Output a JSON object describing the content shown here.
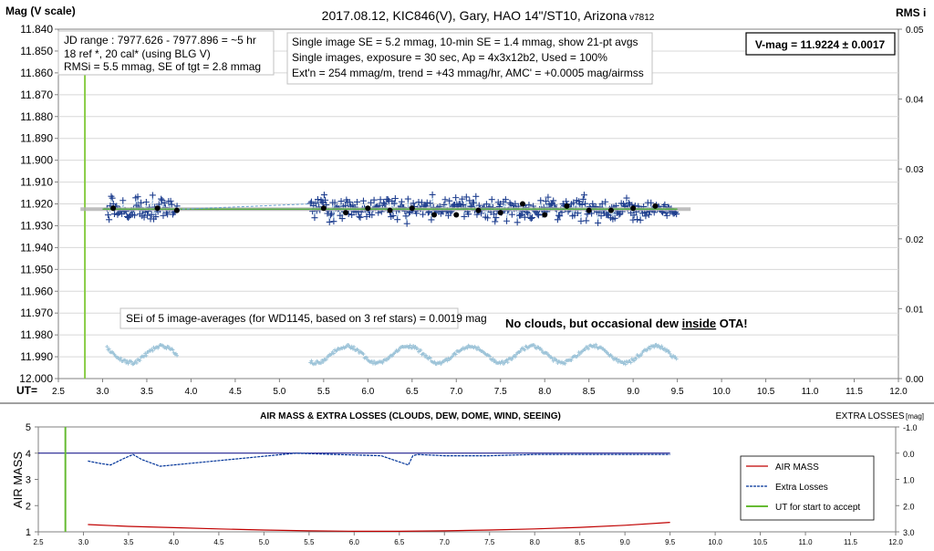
{
  "chart_data": [
    {
      "type": "scatter",
      "title": "2017.08.12,  KIC846(V),  Gary,  HAO  14\"/ST10,  Arizona",
      "version": "- v7812",
      "ylabel": "Mag (V scale)",
      "y2label": "RMS i",
      "xlabel": "UT=",
      "xlim": [
        2.5,
        12.0
      ],
      "ylim": [
        11.84,
        12.0
      ],
      "y_reversed": true,
      "y2lim": [
        0.0,
        0.05
      ],
      "x_ticks": [
        "2.5",
        "3.0",
        "3.5",
        "4.0",
        "4.5",
        "5.0",
        "5.5",
        "6.0",
        "6.5",
        "7.0",
        "7.5",
        "8.0",
        "8.5",
        "9.0",
        "9.5",
        "10.0",
        "10.5",
        "11.0",
        "11.5",
        "12.0"
      ],
      "y_ticks": [
        "11.840",
        "11.850",
        "11.860",
        "11.870",
        "11.880",
        "11.890",
        "11.900",
        "11.910",
        "11.920",
        "11.930",
        "11.940",
        "11.950",
        "11.960",
        "11.970",
        "11.980",
        "11.990",
        "12.000"
      ],
      "y2_ticks": [
        "0.00",
        "0.01",
        "0.02",
        "0.03",
        "0.04",
        "0.05"
      ],
      "ut_start_line": 2.8,
      "mean_mag": 11.9224,
      "info_box_1": [
        "JD range : 7977.626 - 7977.896 = ~5 hr",
        "18 ref *, 20 cal* (using BLG V)",
        "RMSi = 5.5 mmag, SE of tgt = 2.8 mmag"
      ],
      "info_box_2": [
        "Single image SE = 5.2 mmag, 10-min SE = 1.4 mmag, show 21-pt avgs",
        "Single images, exposure = 30 sec, Ap = 4x3x12b2, Used = 100%",
        "Ext'n = 254 mmag/m, trend = +43 mmag/hr, AMC' = +0.0005 mag/airmss"
      ],
      "vmag_box": "V-mag = 11.9224 ± 0.0017",
      "sei_note": "SEi of 5 image-averages (for WD1145, based on 3 ref stars) = 0.0019 mag",
      "note_prefix": "No clouds, but occasional dew ",
      "note_emph": "inside",
      "note_suffix": " OTA!",
      "segments_ut": [
        [
          3.05,
          3.85
        ],
        [
          5.35,
          9.5
        ]
      ],
      "avg_points": {
        "x": [
          3.12,
          3.62,
          3.84,
          5.5,
          5.75,
          6.0,
          6.25,
          6.5,
          6.75,
          7.0,
          7.25,
          7.5,
          7.75,
          8.0,
          8.25,
          8.5,
          8.75,
          9.0,
          9.25
        ],
        "y": [
          11.922,
          11.922,
          11.923,
          11.922,
          11.924,
          11.922,
          11.923,
          11.922,
          11.925,
          11.925,
          11.923,
          11.924,
          11.92,
          11.925,
          11.921,
          11.923,
          11.923,
          11.922,
          11.921
        ]
      }
    },
    {
      "type": "line",
      "title": "AIR MASS & EXTRA LOSSES (CLOUDS, DEW, DOME, WIND, SEEING)",
      "ylabel": "AIR MASS",
      "y2label": "EXTRA LOSSES",
      "y2unit": "[mag]",
      "xlim": [
        2.5,
        12.0
      ],
      "ylim": [
        1,
        5
      ],
      "y2lim": [
        -1.0,
        3.0
      ],
      "y2_reversed": true,
      "x_ticks": [
        "2.5",
        "3.0",
        "3.5",
        "4.0",
        "4.5",
        "5.0",
        "5.5",
        "6.0",
        "6.5",
        "7.0",
        "7.5",
        "8.0",
        "8.5",
        "9.0",
        "9.5",
        "10.0",
        "10.5",
        "11.0",
        "11.5",
        "12.0"
      ],
      "y_ticks": [
        "1",
        "2",
        "3",
        "4",
        "5"
      ],
      "y2_ticks": [
        "-1.0",
        "0.0",
        "1.0",
        "2.0",
        "3.0"
      ],
      "ut_start_line": 2.8,
      "series": [
        {
          "name": "AIR MASS",
          "color": "#c00000",
          "x": [
            3.05,
            3.5,
            4.0,
            4.5,
            5.0,
            5.5,
            6.0,
            6.5,
            7.0,
            7.5,
            8.0,
            8.5,
            9.0,
            9.5
          ],
          "y": [
            1.28,
            1.21,
            1.16,
            1.11,
            1.07,
            1.04,
            1.02,
            1.02,
            1.04,
            1.07,
            1.11,
            1.17,
            1.25,
            1.36
          ]
        },
        {
          "name": "Extra Losses",
          "color": "#003399",
          "x": [
            3.05,
            3.2,
            3.3,
            3.45,
            3.55,
            3.65,
            3.85,
            5.35,
            5.8,
            6.3,
            6.6,
            6.65,
            6.7,
            7.0,
            7.5,
            8.0,
            8.5,
            9.0,
            9.5
          ],
          "y": [
            0.3,
            0.4,
            0.45,
            0.2,
            0.05,
            0.25,
            0.5,
            0.0,
            0.05,
            0.1,
            0.45,
            0.1,
            0.05,
            0.1,
            0.1,
            0.05,
            0.05,
            0.05,
            0.05
          ]
        },
        {
          "name": "UT for start to accept",
          "color": "#66bb33",
          "x": [
            2.8,
            2.8
          ]
        }
      ]
    }
  ]
}
